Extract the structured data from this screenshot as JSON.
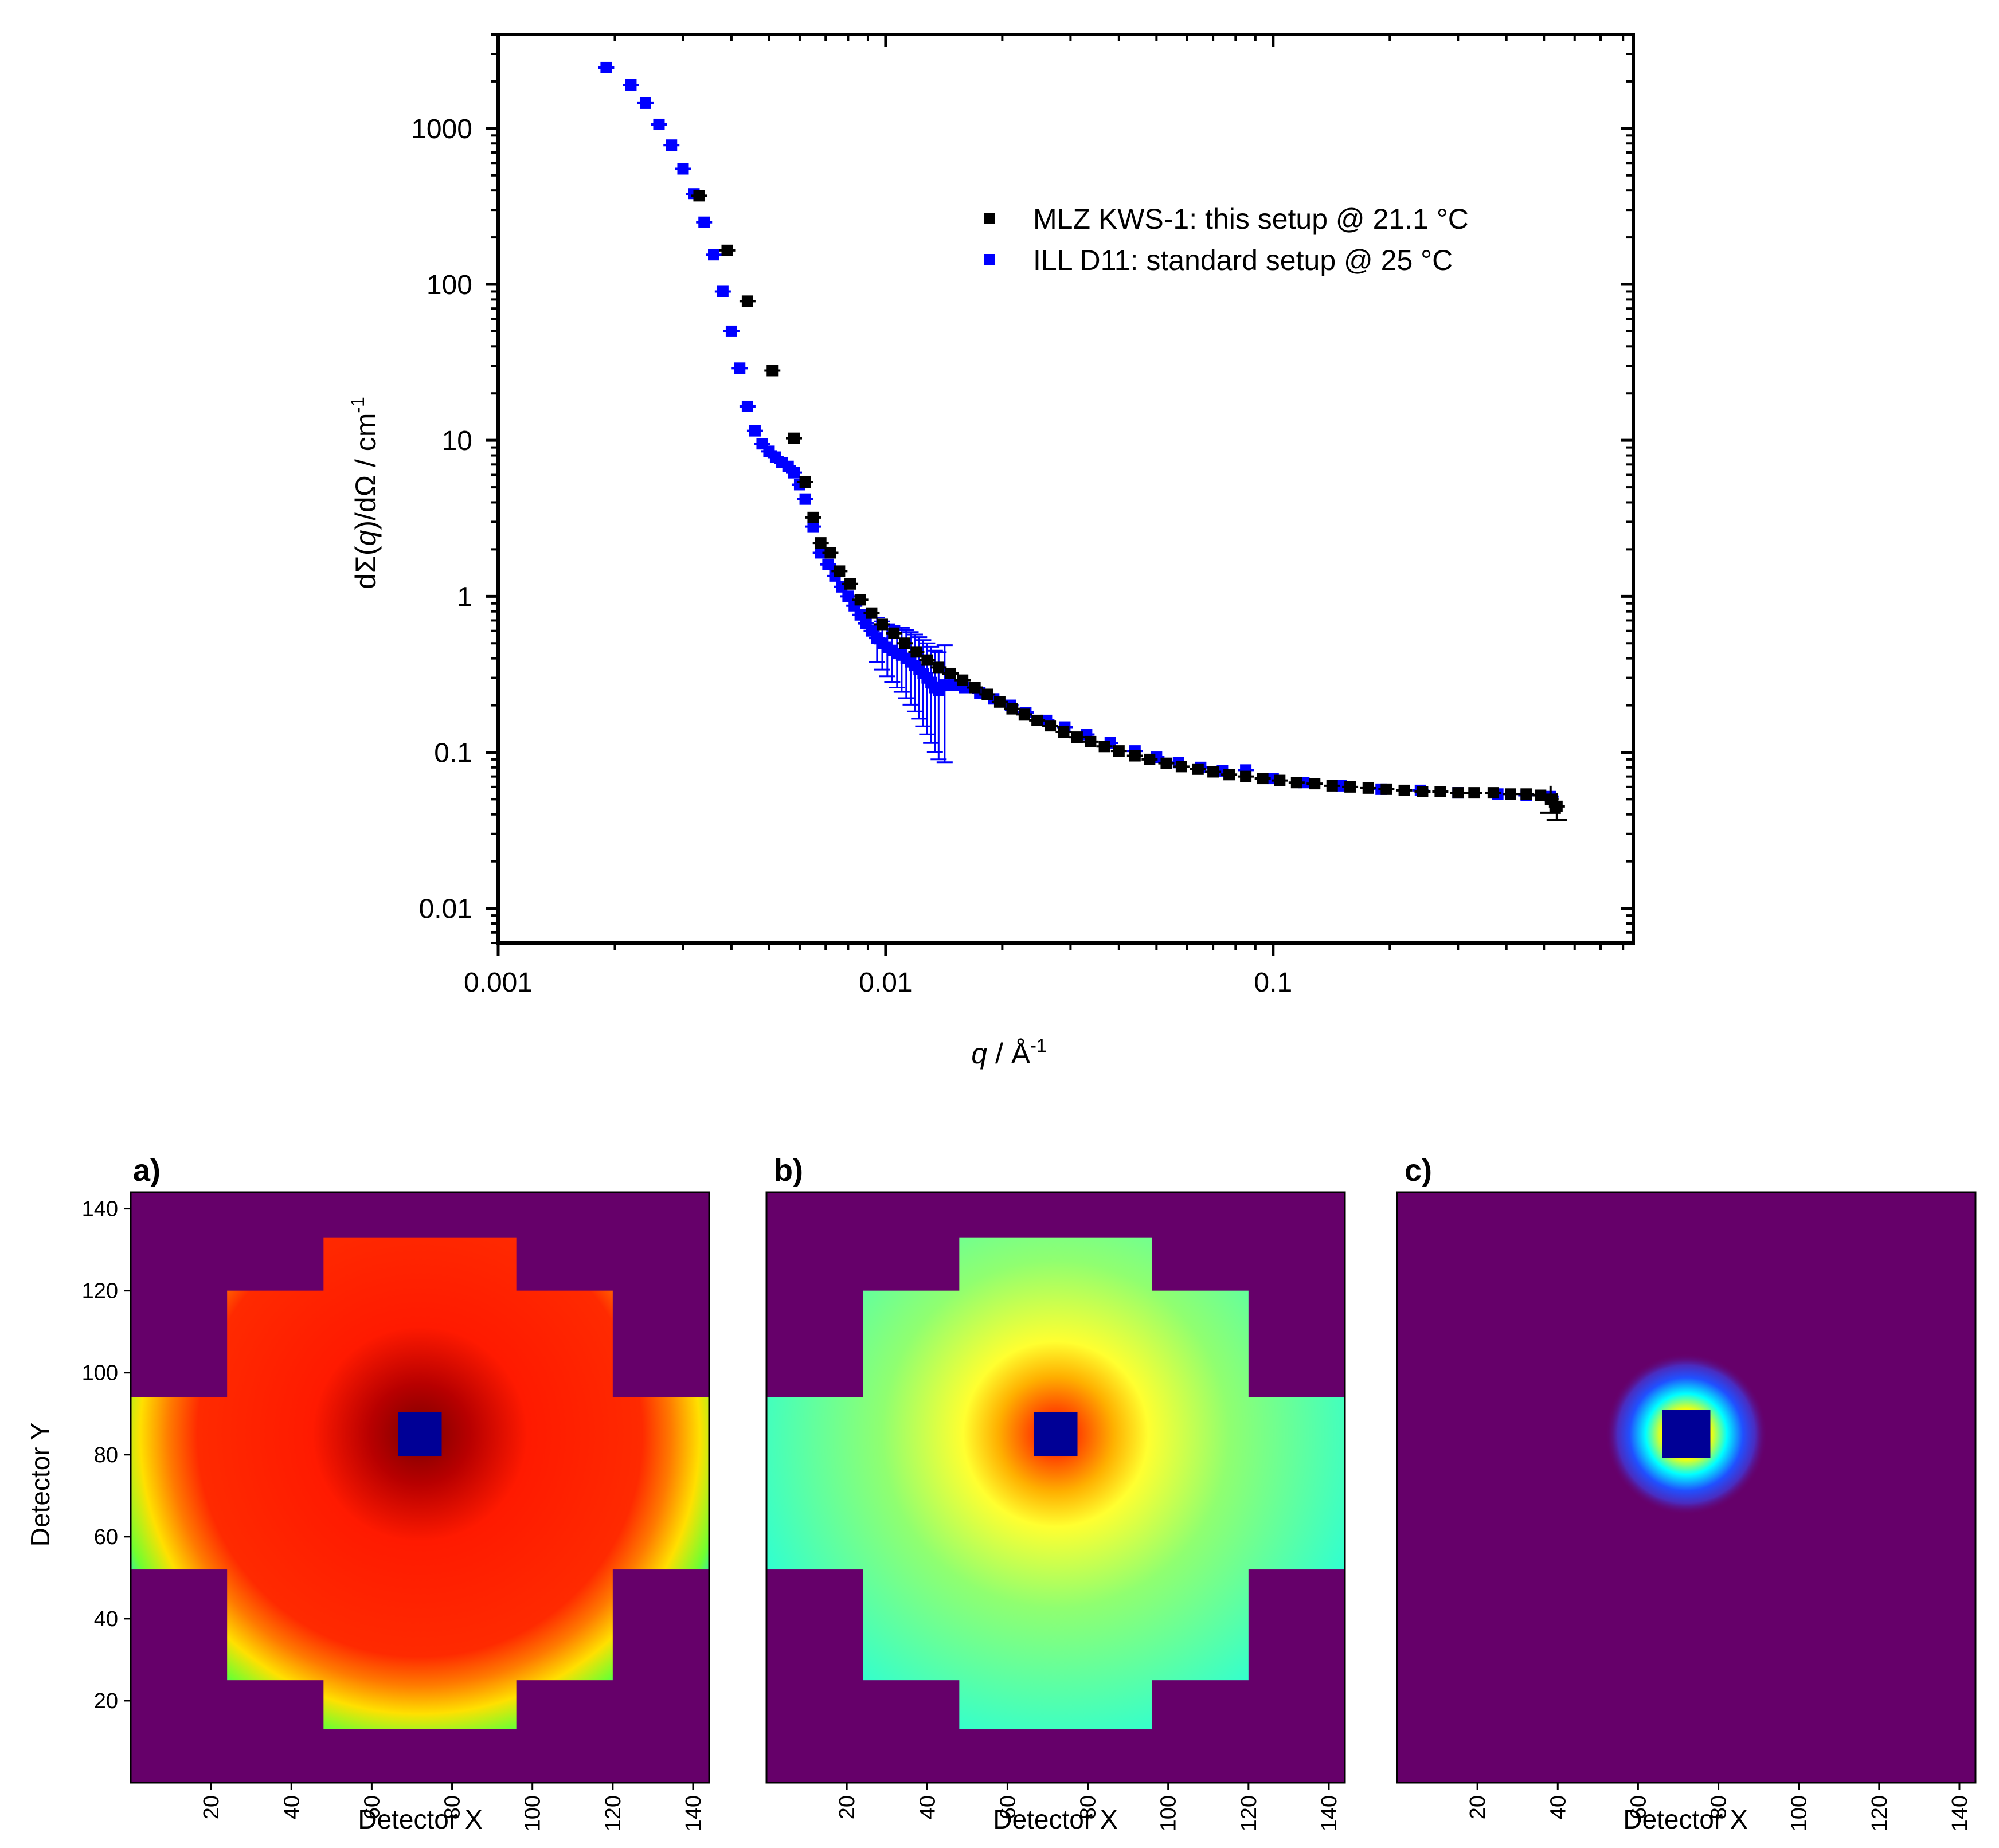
{
  "chart_data": [
    {
      "type": "scatter",
      "title": "",
      "xscale": "log",
      "yscale": "log",
      "xlim": [
        0.001,
        0.85
      ],
      "ylim": [
        0.006,
        4000
      ],
      "xlabel_var": "q",
      "xlabel_unit": " / Å",
      "xlabel_exp": "-1",
      "ylabel_pre": "dΣ(",
      "ylabel_q": "q",
      "ylabel_mid": ")/dΩ  / cm",
      "ylabel_exp": "-1",
      "xticks": [
        {
          "value": 0.001,
          "label": "0.001"
        },
        {
          "value": 0.01,
          "label": "0.01"
        },
        {
          "value": 0.1,
          "label": "0.1"
        }
      ],
      "yticks": [
        {
          "value": 0.01,
          "label": "0.01"
        },
        {
          "value": 0.1,
          "label": "0.1"
        },
        {
          "value": 1,
          "label": "1"
        },
        {
          "value": 10,
          "label": "10"
        },
        {
          "value": 100,
          "label": "100"
        },
        {
          "value": 1000,
          "label": "1000"
        }
      ],
      "legend_position": "top-right",
      "series": [
        {
          "name": "MLZ KWS-1: this setup @ 21.1 °C",
          "color": "#000000",
          "x": [
            0.0033,
            0.0039,
            0.0044,
            0.0051,
            0.0058,
            0.0062,
            0.0065,
            0.0068,
            0.0072,
            0.0076,
            0.0081,
            0.0086,
            0.0092,
            0.0098,
            0.0105,
            0.0112,
            0.012,
            0.0128,
            0.0137,
            0.0147,
            0.0158,
            0.017,
            0.0183,
            0.0197,
            0.0212,
            0.0228,
            0.0246,
            0.0266,
            0.0288,
            0.0312,
            0.0338,
            0.0367,
            0.04,
            0.044,
            0.048,
            0.053,
            0.058,
            0.064,
            0.07,
            0.077,
            0.085,
            0.094,
            0.104,
            0.115,
            0.128,
            0.142,
            0.158,
            0.176,
            0.196,
            0.218,
            0.243,
            0.27,
            0.3,
            0.33,
            0.37,
            0.41,
            0.45,
            0.49,
            0.52,
            0.54
          ],
          "y": [
            370,
            165,
            78,
            28,
            10.3,
            5.4,
            3.2,
            2.2,
            1.9,
            1.45,
            1.2,
            0.95,
            0.78,
            0.66,
            0.58,
            0.5,
            0.44,
            0.39,
            0.35,
            0.32,
            0.29,
            0.26,
            0.235,
            0.21,
            0.19,
            0.175,
            0.16,
            0.148,
            0.135,
            0.125,
            0.117,
            0.109,
            0.102,
            0.095,
            0.09,
            0.085,
            0.081,
            0.078,
            0.075,
            0.072,
            0.07,
            0.068,
            0.066,
            0.064,
            0.063,
            0.061,
            0.06,
            0.059,
            0.058,
            0.057,
            0.056,
            0.056,
            0.055,
            0.055,
            0.055,
            0.054,
            0.054,
            0.053,
            0.05,
            0.045
          ]
        },
        {
          "name": "ILL D11: standard setup @ 25 °C",
          "color": "#0000ff",
          "x": [
            0.0019,
            0.0022,
            0.0024,
            0.0026,
            0.0028,
            0.003,
            0.0032,
            0.0034,
            0.0036,
            0.0038,
            0.004,
            0.0042,
            0.0044,
            0.0046,
            0.0048,
            0.005,
            0.0052,
            0.0054,
            0.0056,
            0.0058,
            0.006,
            0.0062,
            0.0065,
            0.0068,
            0.0071,
            0.0074,
            0.0077,
            0.008,
            0.0083,
            0.0086,
            0.0089,
            0.0092,
            0.0095,
            0.0098,
            0.0101,
            0.0104,
            0.0107,
            0.011,
            0.0113,
            0.0116,
            0.0119,
            0.0122,
            0.0125,
            0.0128,
            0.0131,
            0.0134,
            0.0137,
            0.0142,
            0.015,
            0.016,
            0.0175,
            0.019,
            0.021,
            0.023,
            0.026,
            0.029,
            0.033,
            0.038,
            0.044,
            0.05,
            0.057,
            0.065,
            0.074,
            0.085,
            0.1,
            0.12,
            0.15,
            0.19,
            0.24,
            0.3,
            0.38,
            0.45,
            0.52
          ],
          "y": [
            2450,
            1900,
            1450,
            1060,
            780,
            550,
            380,
            250,
            155,
            90,
            50,
            29,
            16.5,
            11.5,
            9.5,
            8.5,
            7.8,
            7.2,
            6.8,
            6.2,
            5.2,
            4.2,
            2.8,
            1.9,
            1.6,
            1.35,
            1.15,
            1.0,
            0.87,
            0.76,
            0.67,
            0.6,
            0.54,
            0.5,
            0.47,
            0.45,
            0.43,
            0.42,
            0.4,
            0.38,
            0.36,
            0.34,
            0.32,
            0.3,
            0.28,
            0.26,
            0.25,
            0.27,
            0.27,
            0.26,
            0.24,
            0.22,
            0.2,
            0.18,
            0.16,
            0.145,
            0.13,
            0.115,
            0.102,
            0.093,
            0.086,
            0.08,
            0.076,
            0.077,
            0.068,
            0.064,
            0.061,
            0.058,
            0.057,
            0.055,
            0.054,
            0.053,
            0.052
          ]
        }
      ]
    },
    {
      "type": "heatmap",
      "panel_label": "a)",
      "xlabel": "Detector X",
      "ylabel": "Detector Y",
      "xlim": [
        0,
        144
      ],
      "ylim": [
        0,
        144
      ],
      "xticks": [
        20,
        40,
        60,
        80,
        100,
        120,
        140
      ],
      "yticks": [
        20,
        40,
        60,
        80,
        100,
        120,
        140
      ],
      "beamstop_center": [
        72,
        85
      ],
      "colormap": "purple-blue-cyan-green-yellow-red-darkred",
      "detector_regions": [
        {
          "x": [
            0,
            144
          ],
          "y": [
            52,
            94
          ]
        },
        {
          "x": [
            24,
            120
          ],
          "y": [
            25,
            120
          ]
        },
        {
          "x": [
            48,
            96
          ],
          "y": [
            13,
            133
          ]
        }
      ]
    },
    {
      "type": "heatmap",
      "panel_label": "b)",
      "xlabel": "Detector X",
      "xlim": [
        0,
        144
      ],
      "ylim": [
        0,
        144
      ],
      "xticks": [
        20,
        40,
        60,
        80,
        100,
        120,
        140
      ],
      "beamstop_center": [
        72,
        85
      ],
      "colormap": "purple-blue-cyan-green-yellow-red-darkred",
      "detector_regions": [
        {
          "x": [
            0,
            144
          ],
          "y": [
            52,
            94
          ]
        },
        {
          "x": [
            24,
            120
          ],
          "y": [
            25,
            120
          ]
        },
        {
          "x": [
            48,
            96
          ],
          "y": [
            13,
            133
          ]
        }
      ]
    },
    {
      "type": "heatmap",
      "panel_label": "c)",
      "xlabel": "Detector X",
      "xlim": [
        0,
        144
      ],
      "ylim": [
        0,
        144
      ],
      "xticks": [
        20,
        40,
        60,
        80,
        100,
        120,
        140
      ],
      "beamstop_center": [
        72,
        85
      ],
      "colormap": "purple-blue-cyan-green-yellow-red-darkred",
      "detector_regions": []
    }
  ]
}
